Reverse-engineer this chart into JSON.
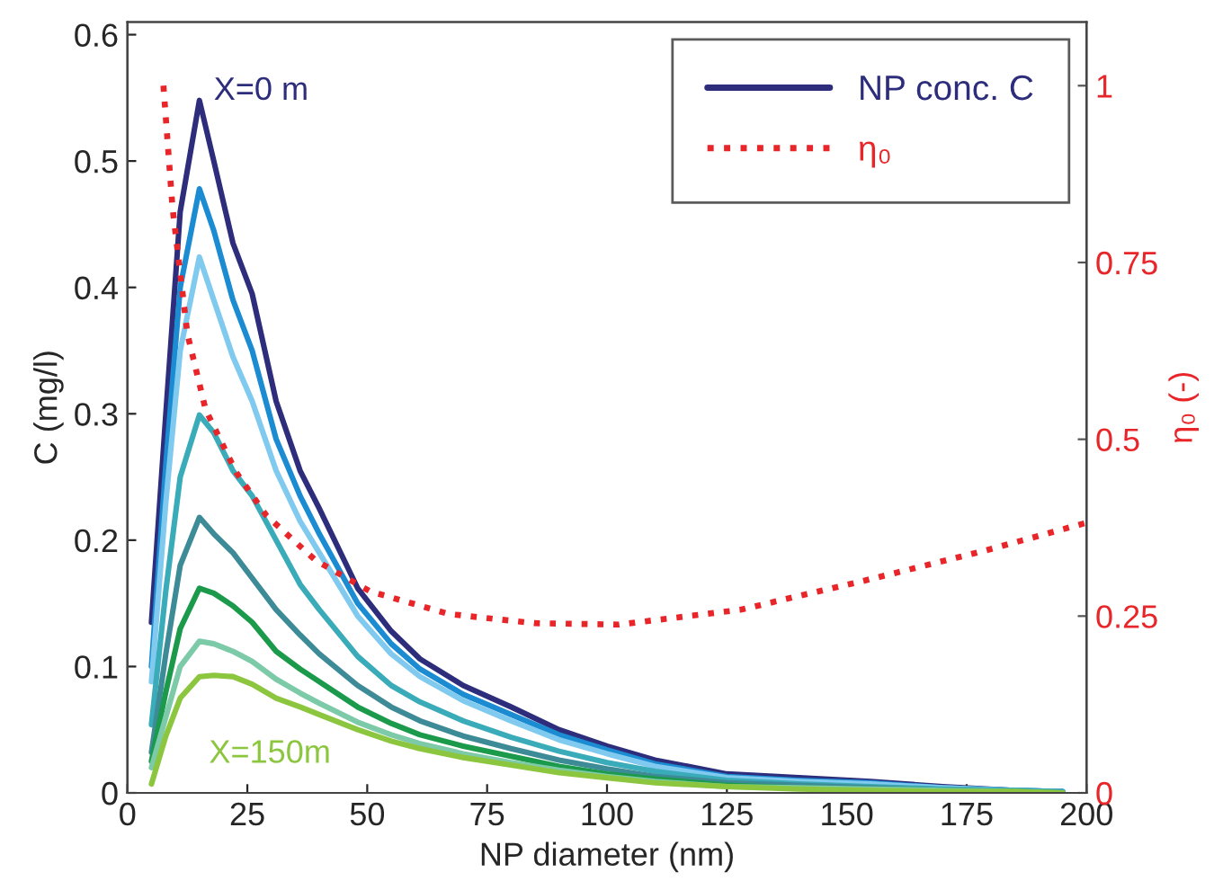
{
  "chart_data": {
    "type": "line",
    "xlabel": "NP diameter (nm)",
    "ylabel": "C (mg/l)",
    "y2label": "η₀ (-)",
    "x": [
      5,
      8,
      11,
      15,
      18,
      22,
      26,
      31,
      36,
      40,
      48,
      55,
      61,
      70,
      80,
      90,
      100,
      110,
      125,
      140,
      155,
      170,
      185,
      195
    ],
    "xlim": [
      0,
      200
    ],
    "xticks": [
      0,
      25,
      50,
      75,
      100,
      125,
      150,
      175,
      200
    ],
    "ylim": [
      0,
      0.61
    ],
    "yticks": [
      0,
      0.1,
      0.2,
      0.3,
      0.4,
      0.5,
      0.6
    ],
    "y2lim": [
      0,
      1.09
    ],
    "y2ticks": [
      0,
      0.25,
      0.5,
      0.75,
      1
    ],
    "grid": false,
    "legend": "top right",
    "line_style": "solid",
    "marker": "none",
    "series": [
      {
        "name": "NP conc. C",
        "color": "#2e2d7c",
        "values": [
          0.135,
          0.3,
          0.46,
          0.548,
          0.5,
          0.435,
          0.395,
          0.31,
          0.255,
          0.225,
          0.162,
          0.128,
          0.106,
          0.085,
          0.068,
          0.05,
          0.037,
          0.026,
          0.015,
          0.012,
          0.009,
          0.005,
          0.002,
          0.001
        ]
      },
      {
        "color": "#1b8bd2",
        "values": [
          0.1,
          0.26,
          0.4,
          0.478,
          0.445,
          0.39,
          0.35,
          0.28,
          0.235,
          0.205,
          0.15,
          0.118,
          0.098,
          0.078,
          0.062,
          0.046,
          0.034,
          0.023,
          0.013,
          0.01,
          0.008,
          0.004,
          0.002,
          0.001
        ]
      },
      {
        "color": "#80c9ef",
        "values": [
          0.088,
          0.23,
          0.35,
          0.424,
          0.39,
          0.345,
          0.31,
          0.255,
          0.215,
          0.19,
          0.14,
          0.11,
          0.092,
          0.073,
          0.057,
          0.042,
          0.031,
          0.021,
          0.012,
          0.009,
          0.007,
          0.004,
          0.002,
          0.001
        ]
      },
      {
        "color": "#3aabb8",
        "values": [
          0.054,
          0.16,
          0.25,
          0.299,
          0.285,
          0.255,
          0.235,
          0.2,
          0.165,
          0.145,
          0.108,
          0.085,
          0.072,
          0.057,
          0.044,
          0.033,
          0.024,
          0.017,
          0.01,
          0.007,
          0.005,
          0.003,
          0.002,
          0.001
        ]
      },
      {
        "color": "#3d8b97",
        "values": [
          0.032,
          0.11,
          0.18,
          0.218,
          0.205,
          0.19,
          0.17,
          0.145,
          0.125,
          0.11,
          0.085,
          0.068,
          0.057,
          0.045,
          0.035,
          0.026,
          0.019,
          0.013,
          0.008,
          0.006,
          0.004,
          0.002,
          0.001,
          0
        ]
      },
      {
        "color": "#1a9a4a",
        "values": [
          0.025,
          0.08,
          0.13,
          0.162,
          0.158,
          0.148,
          0.135,
          0.112,
          0.098,
          0.088,
          0.068,
          0.055,
          0.046,
          0.037,
          0.029,
          0.021,
          0.015,
          0.011,
          0.006,
          0.004,
          0.003,
          0.002,
          0.001,
          0
        ]
      },
      {
        "color": "#7ccaa8",
        "values": [
          0.02,
          0.06,
          0.1,
          0.12,
          0.118,
          0.112,
          0.104,
          0.09,
          0.079,
          0.071,
          0.056,
          0.046,
          0.039,
          0.031,
          0.024,
          0.018,
          0.013,
          0.009,
          0.005,
          0.004,
          0.003,
          0.002,
          0.001,
          0
        ]
      },
      {
        "color": "#8cc63f",
        "values": [
          0.007,
          0.045,
          0.075,
          0.092,
          0.093,
          0.092,
          0.086,
          0.075,
          0.068,
          0.062,
          0.05,
          0.041,
          0.035,
          0.028,
          0.022,
          0.016,
          0.012,
          0.008,
          0.005,
          0.003,
          0.002,
          0.001,
          0.001,
          0
        ]
      },
      {
        "name": "η₀",
        "color": "#e8262a",
        "axis": "y2",
        "line_style": "dotted",
        "x": [
          7.5,
          9.4,
          12.5,
          16.3,
          22.7,
          29,
          39.2,
          50.6,
          67,
          84.8,
          102.5,
          127.8,
          153,
          178.5,
          200
        ],
        "values": [
          1.0,
          0.827,
          0.649,
          0.542,
          0.453,
          0.392,
          0.329,
          0.285,
          0.253,
          0.24,
          0.238,
          0.259,
          0.299,
          0.342,
          0.382
        ]
      }
    ],
    "annotations": [
      "X=0 m",
      "X=150m"
    ]
  }
}
